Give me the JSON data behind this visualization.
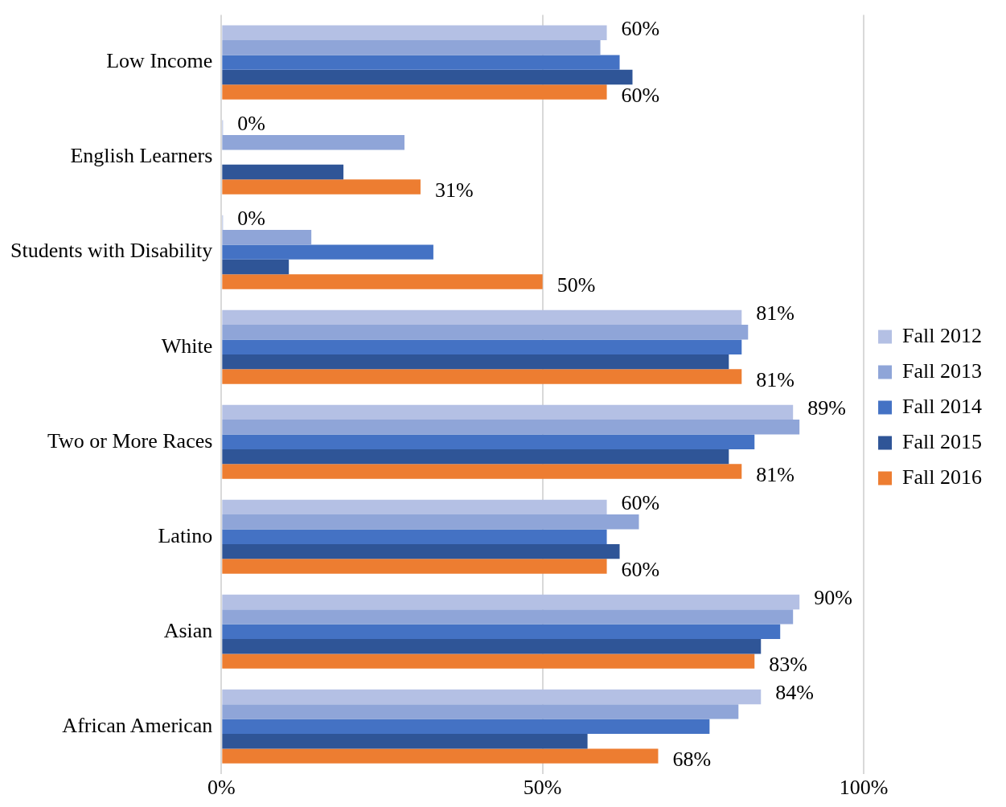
{
  "chart_data": {
    "type": "bar",
    "orientation": "horizontal",
    "categories": [
      "Low Income",
      "English Learners",
      "Students with Disability",
      "White",
      "Two or More Races",
      "Latino",
      "Asian",
      "African American"
    ],
    "series": [
      {
        "name": "Fall 2012",
        "color": "#b4c0e4",
        "values": [
          60,
          0,
          0,
          81,
          89,
          60,
          90,
          84
        ],
        "value_labels": [
          "60%",
          "0%",
          "0%",
          "81%",
          "89%",
          "60%",
          "90%",
          "84%"
        ]
      },
      {
        "name": "Fall 2013",
        "color": "#8fa5d8",
        "values": [
          59,
          28.5,
          14,
          82,
          90,
          65,
          89,
          80.5
        ]
      },
      {
        "name": "Fall 2014",
        "color": "#4472c4",
        "values": [
          62,
          null,
          33,
          81,
          83,
          60,
          87,
          76
        ]
      },
      {
        "name": "Fall 2015",
        "color": "#2f5597",
        "values": [
          64,
          19,
          10.5,
          79,
          79,
          62,
          84,
          57
        ]
      },
      {
        "name": "Fall 2016",
        "color": "#ed7d31",
        "values": [
          60,
          31,
          50,
          81,
          81,
          60,
          83,
          68
        ],
        "value_labels": [
          "60%",
          "31%",
          "50%",
          "81%",
          "81%",
          "60%",
          "83%",
          "68%"
        ]
      }
    ],
    "xlim": [
      0,
      100
    ],
    "xticks": [
      {
        "value": 0,
        "label": "0%"
      },
      {
        "value": 50,
        "label": "50%"
      },
      {
        "value": 100,
        "label": "100%"
      }
    ],
    "grid": "x",
    "legend": "right"
  }
}
